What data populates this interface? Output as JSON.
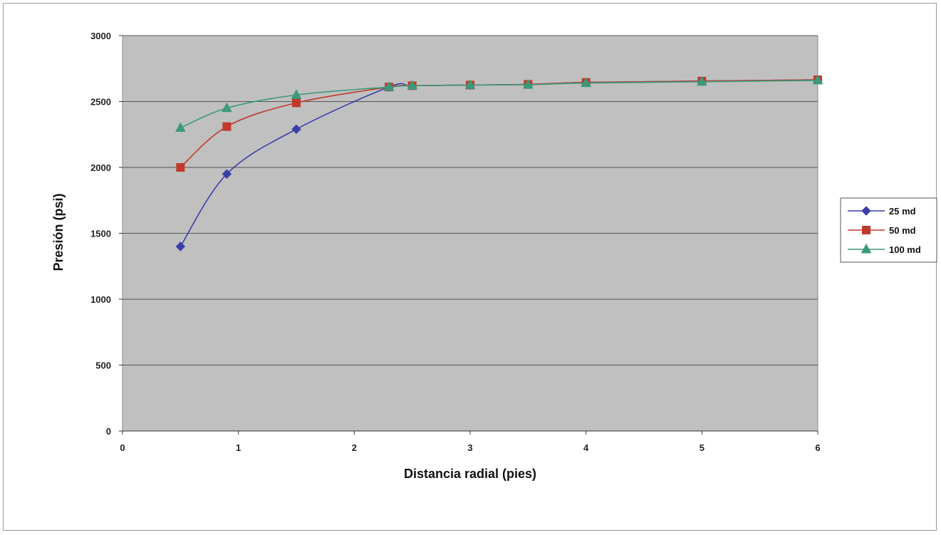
{
  "chart_data": {
    "type": "line",
    "title": "",
    "xlabel": "Distancia radial (pies)",
    "ylabel": "Presión (psi)",
    "xlim": [
      0,
      6
    ],
    "ylim": [
      0,
      3000
    ],
    "x_ticks": [
      "0",
      "1",
      "2",
      "3",
      "4",
      "5",
      "6"
    ],
    "y_ticks": [
      "0",
      "500",
      "1000",
      "1500",
      "2000",
      "2500",
      "3000"
    ],
    "grid": "horizontal",
    "legend_position": "right",
    "plot_background": "#c0c0c0",
    "series": [
      {
        "name": "25 md",
        "color": "#3b3fa8",
        "marker": "diamond",
        "x": [
          0.5,
          0.9,
          1.5,
          2.3,
          2.5,
          3.0,
          3.5,
          4.0,
          5.0,
          6.0
        ],
        "y": [
          1400,
          1950,
          2290,
          2610,
          2620,
          2625,
          2630,
          2645,
          2655,
          2665
        ]
      },
      {
        "name": "50 md",
        "color": "#c0392b",
        "marker": "square",
        "x": [
          0.5,
          0.9,
          1.5,
          2.3,
          2.5,
          3.0,
          3.5,
          4.0,
          5.0,
          6.0
        ],
        "y": [
          2000,
          2310,
          2490,
          2610,
          2620,
          2625,
          2630,
          2645,
          2655,
          2665
        ]
      },
      {
        "name": "100 md",
        "color": "#3a9a7a",
        "marker": "triangle",
        "x": [
          0.5,
          0.9,
          1.5,
          2.3,
          2.5,
          3.0,
          3.5,
          4.0,
          5.0,
          6.0
        ],
        "y": [
          2300,
          2450,
          2550,
          2610,
          2620,
          2625,
          2628,
          2640,
          2650,
          2660
        ]
      }
    ]
  }
}
